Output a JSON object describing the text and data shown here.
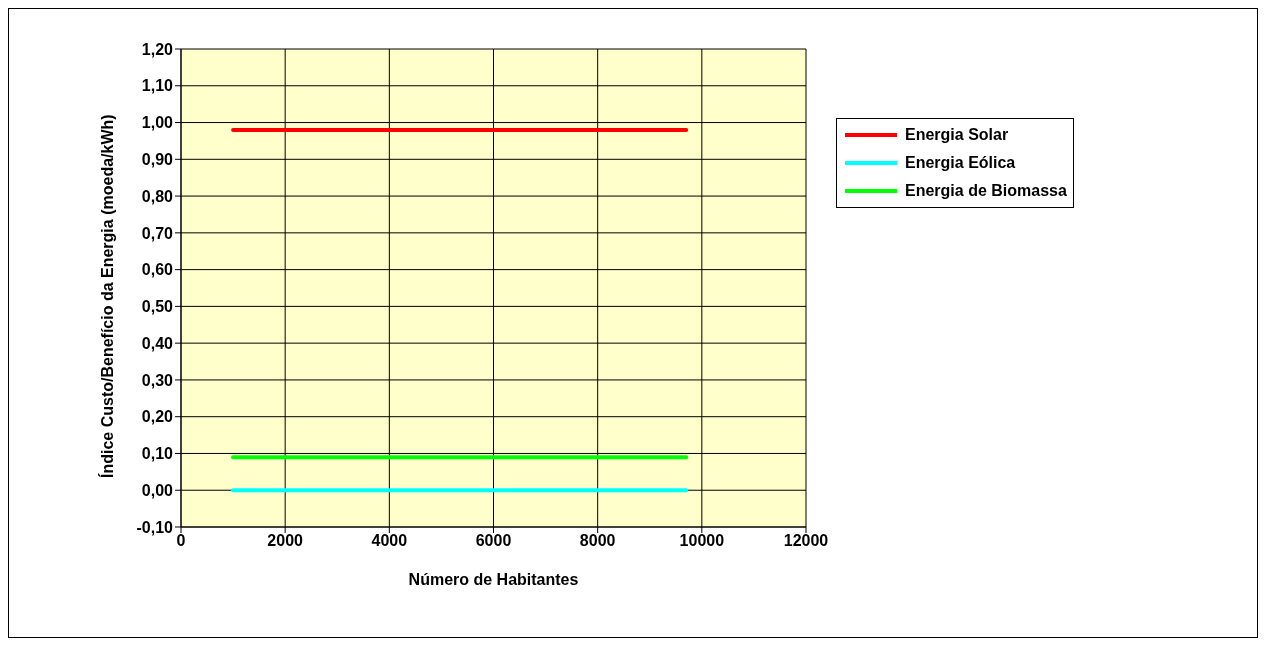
{
  "chart_data": {
    "type": "line",
    "xlabel": "Número de Habitantes",
    "ylabel": "Índice Custo/Benefício da Energia (moeda/kWh)",
    "x": [
      1000,
      9700
    ],
    "series": [
      {
        "name": "Energia Solar",
        "color": "#ff0000",
        "values": [
          0.98,
          0.98
        ]
      },
      {
        "name": "Energia Eólica",
        "color": "#00ffff",
        "values": [
          0,
          0
        ]
      },
      {
        "name": "Energia de Biomassa",
        "color": "#00ff00",
        "values": [
          0.09,
          0.09
        ]
      }
    ],
    "xlim": [
      0,
      12000
    ],
    "xticks": [
      0,
      2000,
      4000,
      6000,
      8000,
      10000,
      12000
    ],
    "ylim": [
      -0.1,
      1.2
    ],
    "yticks": [
      {
        "value": -0.1,
        "label": "-0,10"
      },
      {
        "value": 0,
        "label": "0,00"
      },
      {
        "value": 0.1,
        "label": "0,10"
      },
      {
        "value": 0.2,
        "label": "0,20"
      },
      {
        "value": 0.3,
        "label": "0,30"
      },
      {
        "value": 0.4,
        "label": "0,40"
      },
      {
        "value": 0.5,
        "label": "0,50"
      },
      {
        "value": 0.6,
        "label": "0,60"
      },
      {
        "value": 0.7,
        "label": "0,70"
      },
      {
        "value": 0.8,
        "label": "0,80"
      },
      {
        "value": 0.9,
        "label": "0,90"
      },
      {
        "value": 1.0,
        "label": "1,00"
      },
      {
        "value": 1.1,
        "label": "1,10"
      },
      {
        "value": 1.2,
        "label": "1,20"
      }
    ],
    "grid": true,
    "legend": "right",
    "marker": "none",
    "line_style": "solid"
  }
}
